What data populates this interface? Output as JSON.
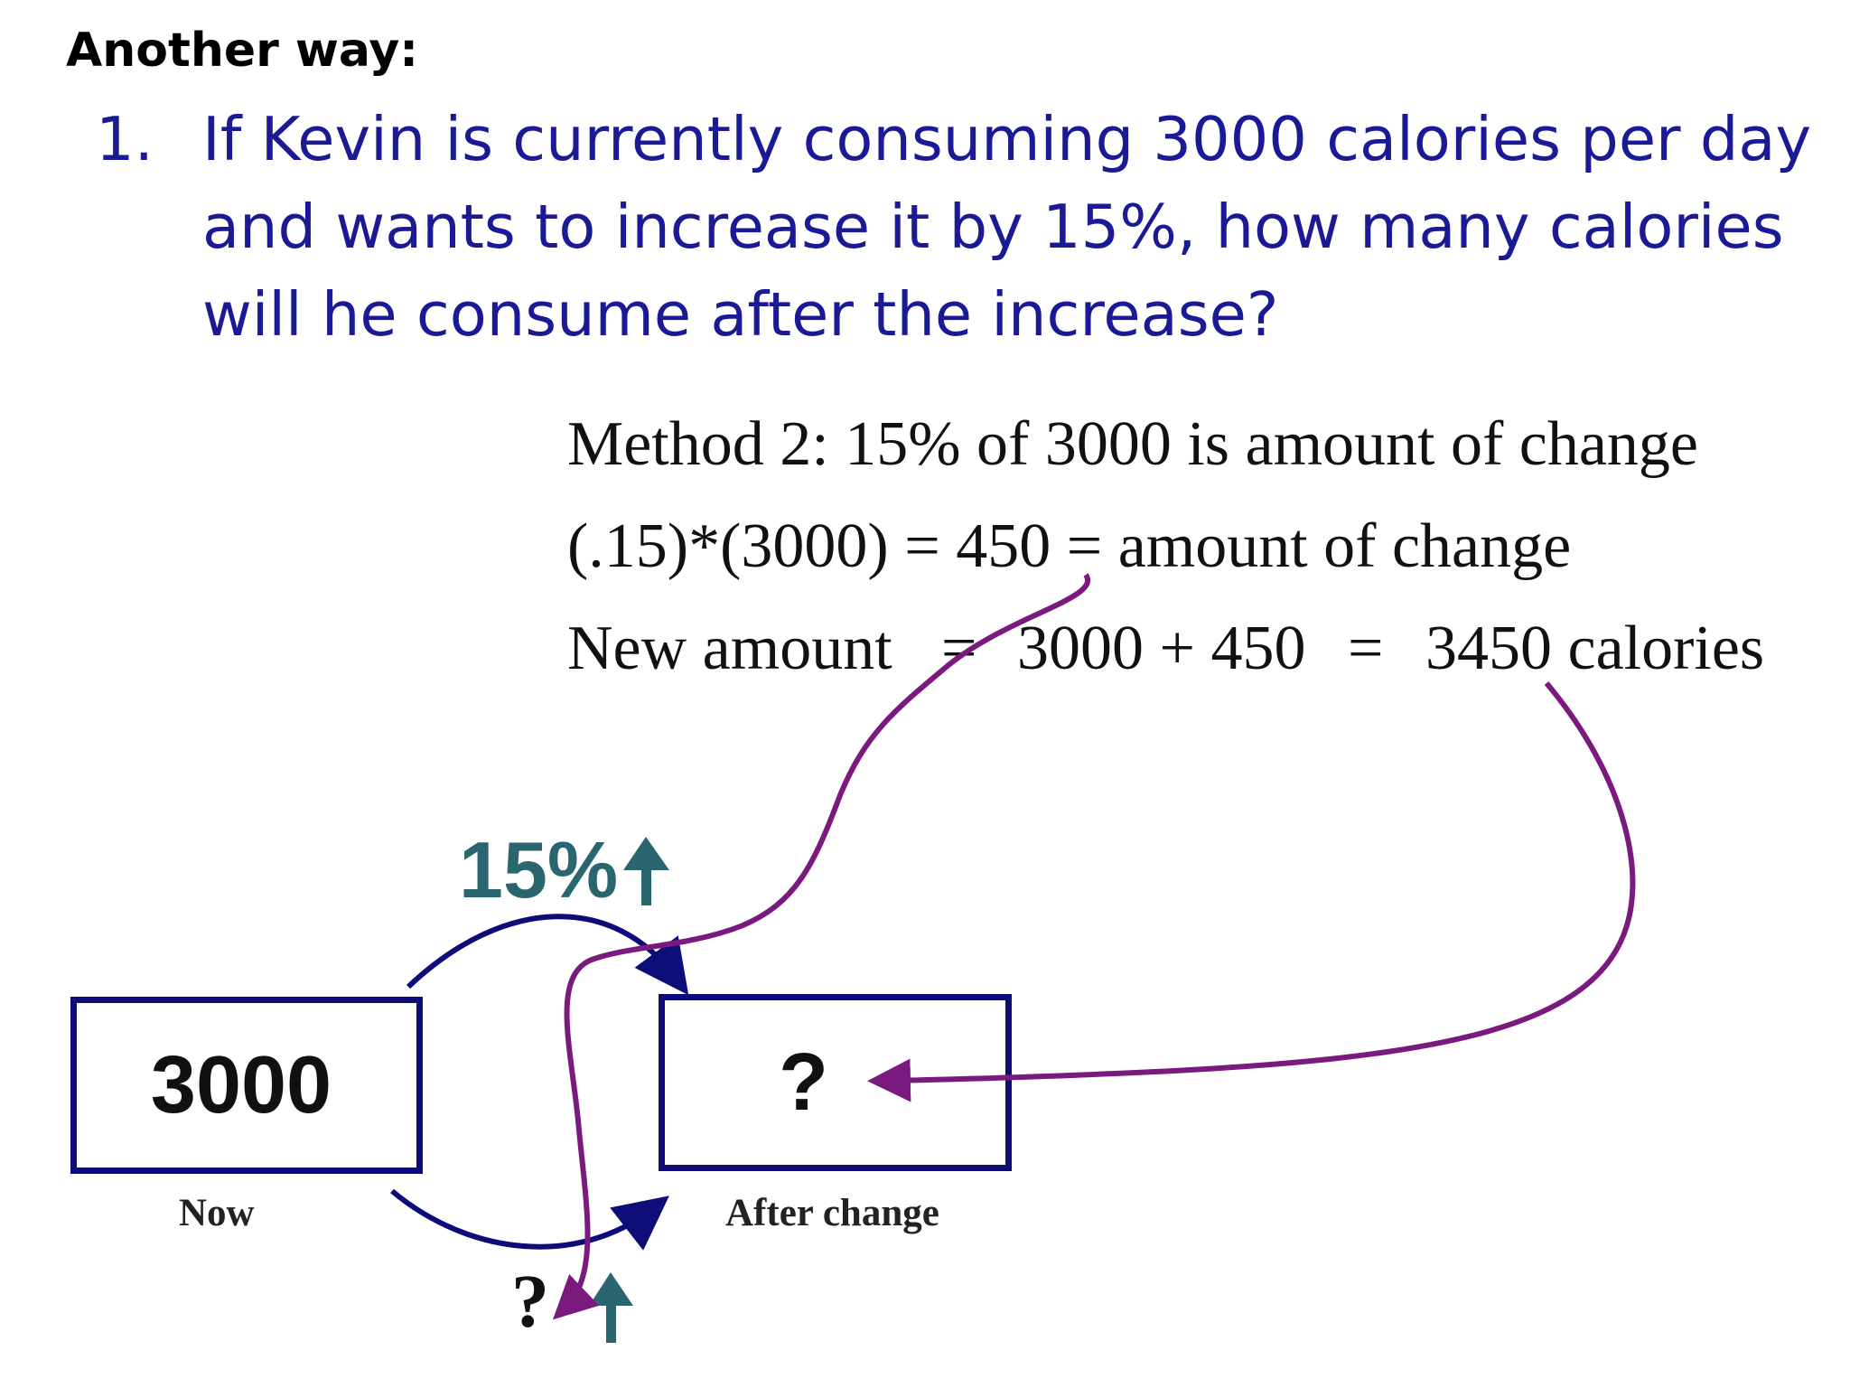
{
  "slide": {
    "heading": "Another way:",
    "question": {
      "number": "1.",
      "lines": [
        "If Kevin is currently consuming 3000 calories per day",
        "and wants to increase it by 15%, how many calories",
        "will he consume after the increase?"
      ]
    },
    "method": {
      "line1": "Method 2: 15% of 3000 is amount of change",
      "line2": "(.15)*(3000) = 450 = amount of change",
      "line3_left": "New amount",
      "line3_eq1": "=",
      "line3_expr": "3000 + 450",
      "line3_eq2": "=",
      "line3_result": "3450 calories"
    },
    "diagram": {
      "now_value": "3000",
      "now_label": "Now",
      "after_value": "?",
      "after_label": "After change",
      "percent_label": "15%",
      "unknown_change": "?"
    }
  },
  "colors": {
    "question_text": "#1a1a96",
    "box_border": "#0d0d7a",
    "flow_arrow": "#0d0d7a",
    "percent_text": "#2a6670",
    "annotation": "#7b1a7e"
  }
}
